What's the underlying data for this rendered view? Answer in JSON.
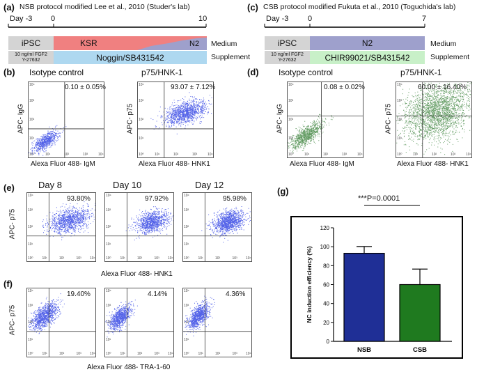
{
  "panel_a": {
    "label": "(a)",
    "title": "NSB protocol modified Lee et al., 2010 (Studer's lab)",
    "day_start": "Day -3",
    "day_zero": "0",
    "day_end": "10",
    "ipsc": "iPSC",
    "ksr": "KSR",
    "n2": "N2",
    "medium": "Medium",
    "fgf": "10 ng/ml FGF2",
    "y27632": "Y-27632",
    "supplement_text": "Noggin/SB431542",
    "supplement": "Supplement",
    "colors": {
      "ksr": "#f08080",
      "n2": "#9ea0cc",
      "supp": "#aed8f0",
      "ipsc": "#d4d4d4"
    }
  },
  "panel_c": {
    "label": "(c)",
    "title": "CSB protocol modified Fukuta et al., 2010 (Toguchida's lab)",
    "day_start": "Day -3",
    "day_zero": "0",
    "day_end": "7",
    "ipsc": "iPSC",
    "n2": "N2",
    "medium": "Medium",
    "fgf": "10 ng/ml FGF2",
    "y27632": "Y-27632",
    "supplement_text": "CHIR99021/SB431542",
    "supplement": "Supplement",
    "colors": {
      "n2": "#9ea0cc",
      "supp": "#c8f0c8",
      "ipsc": "#d4d4d4"
    }
  },
  "panel_b": {
    "label": "(b)",
    "plots": [
      {
        "title": "Isotype control",
        "pct": "0.10 ± 0.05%",
        "ylabel": "APC- IgG",
        "xlabel": "Alexa Fluor 488- IgM"
      },
      {
        "title": "p75/HNK-1",
        "pct": "93.07 ± 7.12%",
        "ylabel": "APC- p75",
        "xlabel": "Alexa Fluor 488- HNK1"
      }
    ],
    "dot_color": "#1a2ee0"
  },
  "panel_d": {
    "label": "(d)",
    "plots": [
      {
        "title": "Isotype control",
        "pct": "0.08 ± 0.02%",
        "ylabel": "APC- IgG",
        "xlabel": "Alexa Fluor 488- IgM"
      },
      {
        "title": "p75/HNK-1",
        "pct": "60.00 ± 16.40%",
        "ylabel": "APC- p75",
        "xlabel": "Alexa Fluor 488- HNK1"
      }
    ],
    "dot_color": "#2e7a2e"
  },
  "panel_e": {
    "label": "(e)",
    "days": [
      "Day 8",
      "Day 10",
      "Day 12"
    ],
    "pcts": [
      "93.80%",
      "97.92%",
      "95.98%"
    ],
    "ylabel": "APC- p75",
    "xlabel": "Alexa Fluor 488- HNK1"
  },
  "panel_f": {
    "label": "(f)",
    "pcts": [
      "19.40%",
      "4.14%",
      "4.36%"
    ],
    "ylabel": "APC- p75",
    "xlabel": "Alexa Fluor 488- TRA-1-60"
  },
  "ticks": {
    "t0": "10⁰",
    "t1": "10¹",
    "t2": "10²",
    "t3": "10³",
    "t4": "10⁴"
  },
  "panel_g": {
    "label": "(g)",
    "significance": "***P=0.0001"
  },
  "chart_data": {
    "type": "bar",
    "categories": [
      "NSB",
      "CSB"
    ],
    "values": [
      93.07,
      60.0
    ],
    "errors": [
      7.12,
      16.4
    ],
    "colors": [
      "#1f2f96",
      "#1f7a1f"
    ],
    "title": "",
    "xlabel": "",
    "ylabel": "NC induction efficiency (%)",
    "ylim": [
      0,
      120
    ],
    "yticks": [
      0,
      20,
      40,
      60,
      80,
      100,
      120
    ]
  }
}
